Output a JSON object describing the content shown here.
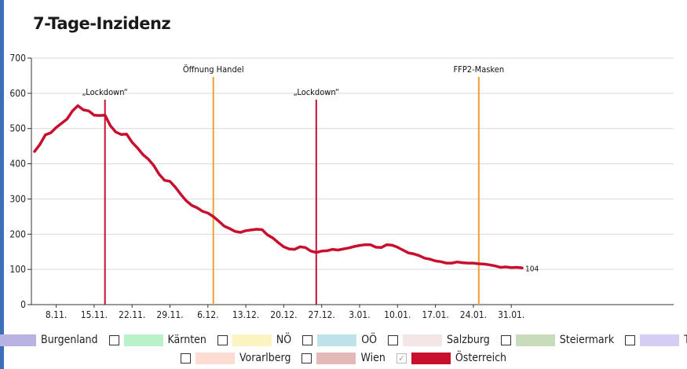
{
  "title": "7-Tage-Inzidenz",
  "chart_data": {
    "type": "line",
    "title": "7-Tage-Inzidenz",
    "xlabel": "",
    "ylabel": "",
    "ylim": [
      0,
      700
    ],
    "yticks": [
      0,
      100,
      200,
      300,
      400,
      500,
      600,
      700
    ],
    "x_tick_labels": [
      "8.11.",
      "15.11.",
      "22.11.",
      "29.11.",
      "6.12.",
      "13.12.",
      "20.12.",
      "27.12.",
      "3.01.",
      "10.01.",
      "17.01.",
      "24.01.",
      "31.01."
    ],
    "x_start": "2020-11-04",
    "grid": "horizontal",
    "series": [
      {
        "name": "Österreich",
        "color": "#c8102e",
        "end_label": "104",
        "values": [
          435,
          455,
          482,
          488,
          503,
          515,
          527,
          550,
          565,
          553,
          550,
          538,
          537,
          538,
          508,
          490,
          483,
          484,
          461,
          445,
          426,
          413,
          395,
          370,
          353,
          350,
          333,
          313,
          295,
          282,
          275,
          265,
          260,
          250,
          237,
          223,
          216,
          208,
          205,
          210,
          212,
          214,
          213,
          198,
          189,
          176,
          164,
          158,
          157,
          164,
          162,
          152,
          148,
          152,
          153,
          157,
          155,
          158,
          161,
          165,
          168,
          170,
          170,
          163,
          162,
          170,
          169,
          163,
          155,
          147,
          144,
          139,
          132,
          129,
          124,
          122,
          118,
          118,
          121,
          119,
          118,
          118,
          116,
          115,
          113,
          110,
          106,
          107,
          105,
          106,
          104
        ]
      }
    ],
    "annotations": [
      {
        "label": "„Lockdown“",
        "date": "2020-11-17",
        "color": "#c8102e"
      },
      {
        "label": "Öffnung Handel",
        "date": "2020-12-07",
        "color": "#f0a030"
      },
      {
        "label": "„Lockdown“",
        "date": "2020-12-26",
        "color": "#c8102e"
      },
      {
        "label": "FFP2-Masken",
        "date": "2021-01-25",
        "color": "#f0a030"
      }
    ]
  },
  "legend": [
    [
      {
        "label": "Burgenland",
        "color": "#b9b3e4",
        "checked": false
      },
      {
        "label": "Kärnten",
        "color": "#b9f1c8",
        "checked": false
      },
      {
        "label": "NÖ",
        "color": "#fbf4c0",
        "checked": false
      },
      {
        "label": "OÖ",
        "color": "#bde2ea",
        "checked": false
      },
      {
        "label": "Salzburg",
        "color": "#f3e6e6",
        "checked": false
      },
      {
        "label": "Steiermark",
        "color": "#c8dcbc",
        "checked": false
      },
      {
        "label": "Tirol",
        "color": "#d6cdf5",
        "checked": false
      }
    ],
    [
      {
        "label": "Vorarlberg",
        "color": "#fcdcd3",
        "checked": false
      },
      {
        "label": "Wien",
        "color": "#e6b9b9",
        "checked": false
      },
      {
        "label": "Österreich",
        "color": "#c8102e",
        "checked": true
      }
    ]
  ]
}
